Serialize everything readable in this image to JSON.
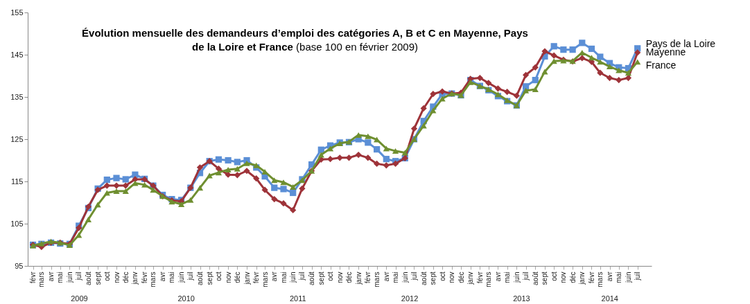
{
  "chart_data": {
    "type": "line",
    "title": "Évolution mensuelle des demandeurs d’emploi des catégories A, B et C en Mayenne, Pays de la Loire et France",
    "subtitle": "(base 100 en février 2009)",
    "x": [
      "2009-02",
      "2009-03",
      "2009-04",
      "2009-05",
      "2009-06",
      "2009-07",
      "2009-08",
      "2009-09",
      "2009-10",
      "2009-11",
      "2009-12",
      "2010-01",
      "2010-02",
      "2010-03",
      "2010-04",
      "2010-05",
      "2010-06",
      "2010-07",
      "2010-08",
      "2010-09",
      "2010-10",
      "2010-11",
      "2010-12",
      "2011-01",
      "2011-02",
      "2011-03",
      "2011-04",
      "2011-05",
      "2011-06",
      "2011-07",
      "2011-08",
      "2011-09",
      "2011-10",
      "2011-11",
      "2011-12",
      "2012-01",
      "2012-02",
      "2012-03",
      "2012-04",
      "2012-05",
      "2012-06",
      "2012-07",
      "2012-08",
      "2012-09",
      "2012-10",
      "2012-11",
      "2012-12",
      "2013-01",
      "2013-02",
      "2013-03",
      "2013-04",
      "2013-05",
      "2013-06",
      "2013-07",
      "2013-08",
      "2013-09",
      "2013-10",
      "2013-11",
      "2013-12",
      "2014-01",
      "2014-02",
      "2014-03",
      "2014-04",
      "2014-05",
      "2014-06",
      "2014-07"
    ],
    "xlim": [
      "2009-01-15",
      "2014-08-16"
    ],
    "xticks": [
      {
        "value": "2009-02",
        "label": "févr"
      },
      {
        "value": "2009-03",
        "label": "mars"
      },
      {
        "value": "2009-04",
        "label": "avr"
      },
      {
        "value": "2009-05",
        "label": "mai"
      },
      {
        "value": "2009-06",
        "label": "juin"
      },
      {
        "value": "2009-07",
        "label": "juil"
      },
      {
        "value": "2009-08",
        "label": "août"
      },
      {
        "value": "2009-09",
        "label": "sept"
      },
      {
        "value": "2009-10",
        "label": "oct"
      },
      {
        "value": "2009-11",
        "label": "nov"
      },
      {
        "value": "2009-12",
        "label": "déc"
      },
      {
        "value": "2010-01",
        "label": "janv"
      },
      {
        "value": "2010-02",
        "label": "févr"
      },
      {
        "value": "2010-03",
        "label": "mars"
      },
      {
        "value": "2010-04",
        "label": "avr"
      },
      {
        "value": "2010-05",
        "label": "mai"
      },
      {
        "value": "2010-06",
        "label": "juin"
      },
      {
        "value": "2010-07",
        "label": "juil"
      },
      {
        "value": "2010-08",
        "label": "août"
      },
      {
        "value": "2010-09",
        "label": "sept"
      },
      {
        "value": "2010-10",
        "label": "oct"
      },
      {
        "value": "2010-11",
        "label": "nov"
      },
      {
        "value": "2010-12",
        "label": "déc"
      },
      {
        "value": "2011-01",
        "label": "janv"
      },
      {
        "value": "2011-02",
        "label": "févr"
      },
      {
        "value": "2011-03",
        "label": "mars"
      },
      {
        "value": "2011-04",
        "label": "avr"
      },
      {
        "value": "2011-05",
        "label": "mai"
      },
      {
        "value": "2011-06",
        "label": "juin"
      },
      {
        "value": "2011-07",
        "label": "juil"
      },
      {
        "value": "2011-08",
        "label": "août"
      },
      {
        "value": "2011-09",
        "label": "sept"
      },
      {
        "value": "2011-10",
        "label": "oct"
      },
      {
        "value": "2011-11",
        "label": "nov"
      },
      {
        "value": "2011-12",
        "label": "déc"
      },
      {
        "value": "2012-01",
        "label": "janv"
      },
      {
        "value": "2012-02",
        "label": "févr"
      },
      {
        "value": "2012-03",
        "label": "mars"
      },
      {
        "value": "2012-04",
        "label": "avr"
      },
      {
        "value": "2012-05",
        "label": "mai"
      },
      {
        "value": "2012-06",
        "label": "juin"
      },
      {
        "value": "2012-07",
        "label": "juil"
      },
      {
        "value": "2012-08",
        "label": "août"
      },
      {
        "value": "2012-09",
        "label": "sept"
      },
      {
        "value": "2012-10",
        "label": "oct"
      },
      {
        "value": "2012-11",
        "label": "nov"
      },
      {
        "value": "2012-12",
        "label": "déc"
      },
      {
        "value": "2013-01",
        "label": "janv"
      },
      {
        "value": "2013-02",
        "label": "févr"
      },
      {
        "value": "2013-03",
        "label": "mars"
      },
      {
        "value": "2013-04",
        "label": "avr"
      },
      {
        "value": "2013-05",
        "label": "mai"
      },
      {
        "value": "2013-06",
        "label": "juin"
      },
      {
        "value": "2013-07",
        "label": "juil"
      },
      {
        "value": "2013-08",
        "label": "août"
      },
      {
        "value": "2013-09",
        "label": "sept"
      },
      {
        "value": "2013-10",
        "label": "oct"
      },
      {
        "value": "2013-11",
        "label": "nov"
      },
      {
        "value": "2013-12",
        "label": "déc"
      },
      {
        "value": "2014-01",
        "label": "janv"
      },
      {
        "value": "2014-02",
        "label": "févr"
      },
      {
        "value": "2014-03",
        "label": "mars"
      },
      {
        "value": "2014-04",
        "label": "avr"
      },
      {
        "value": "2014-05",
        "label": "mai"
      },
      {
        "value": "2014-06",
        "label": "juin"
      },
      {
        "value": "2014-07",
        "label": "juil"
      }
    ],
    "ylim": [
      95,
      155
    ],
    "yticks": [
      95,
      105,
      115,
      125,
      135,
      145,
      155
    ],
    "series": [
      {
        "name": "Pays de la Loire",
        "color": "#5b8fd6",
        "marker": "square",
        "values": [
          100,
          100.2,
          100.5,
          100.3,
          100.2,
          104.5,
          108.7,
          113.3,
          115.4,
          115.8,
          115.5,
          116.6,
          115.6,
          114,
          111.8,
          110.8,
          110.6,
          113.5,
          117,
          119.8,
          120.2,
          120,
          119.6,
          120,
          118.3,
          116.2,
          113.5,
          113.2,
          112.3,
          115.5,
          119,
          122.5,
          123.5,
          124.2,
          124.3,
          125,
          124.2,
          122.6,
          120.3,
          119.8,
          120.5,
          125,
          129.3,
          132.7,
          135.7,
          135.8,
          135.4,
          139,
          137.6,
          136.6,
          135.2,
          134,
          133,
          137.5,
          139,
          144.6,
          147,
          146.2,
          146.2,
          147.8,
          146.4,
          144.5,
          143,
          142,
          141.8,
          146.5
        ]
      },
      {
        "name": "Mayenne",
        "color": "#9e3339",
        "marker": "diamond",
        "values": [
          100,
          99.5,
          100.5,
          100.5,
          100.2,
          104,
          109,
          113,
          114,
          114,
          114,
          115.5,
          115.5,
          114,
          111.5,
          110.5,
          110.3,
          113.5,
          118.3,
          119.8,
          118,
          116.6,
          116.5,
          117.5,
          115.7,
          113,
          110.8,
          109.8,
          108.2,
          113.3,
          117.5,
          120.2,
          120.3,
          120.6,
          120.6,
          121.3,
          120.6,
          119.2,
          118.8,
          119.2,
          120.5,
          127.5,
          132.3,
          135.7,
          136.3,
          135.8,
          136,
          139.3,
          139.5,
          138.3,
          137,
          136.2,
          135.3,
          140.2,
          142,
          145.8,
          144.8,
          143.8,
          143.4,
          144.2,
          143.3,
          140.7,
          139.5,
          139,
          139.5,
          145.5
        ]
      },
      {
        "name": "France",
        "color": "#6f8f30",
        "marker": "triangle",
        "values": [
          99.8,
          100.3,
          100.8,
          100.5,
          99.9,
          102.3,
          106,
          109.5,
          112.3,
          112.7,
          112.7,
          114.6,
          114.2,
          113,
          111.5,
          110.2,
          109.6,
          110.6,
          113.5,
          116.4,
          117.1,
          117.8,
          118,
          119.3,
          118.8,
          117.3,
          115.3,
          114.8,
          113.7,
          115.3,
          117.5,
          121.3,
          122.8,
          124,
          124.4,
          126,
          125.7,
          124.9,
          122.8,
          122.2,
          121.8,
          125,
          128.2,
          131.8,
          134.6,
          135.8,
          135.4,
          138.5,
          137.6,
          136.8,
          135.6,
          134.2,
          133,
          136.5,
          136.8,
          141,
          143.5,
          143.6,
          143.5,
          145.5,
          144.3,
          143.3,
          142.2,
          141.3,
          140.7,
          143.3
        ]
      }
    ],
    "annotations": [
      "2009",
      "2010",
      "2011",
      "2012",
      "2013",
      "2014"
    ],
    "legend": false,
    "grid": false
  }
}
